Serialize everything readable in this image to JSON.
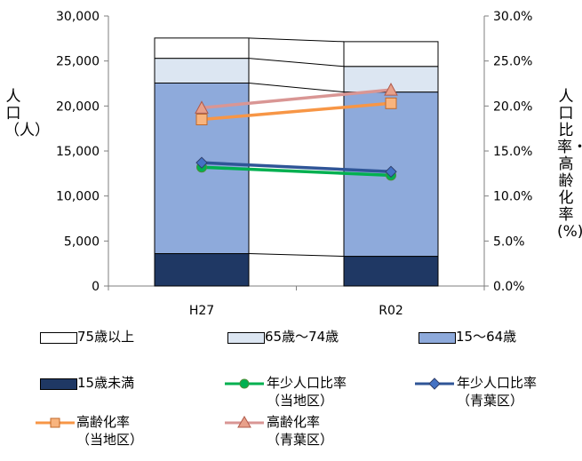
{
  "chart_data": {
    "type": "bar",
    "categories": [
      "H27",
      "R02"
    ],
    "ylabel_left": "人口（人）",
    "ylabel_right": "人口比率・高齢化率(%)",
    "ylim_left": [
      0,
      30000
    ],
    "ylim_right": [
      0,
      30
    ],
    "left_ticks": [
      "0",
      "5,000",
      "10,000",
      "15,000",
      "20,000",
      "25,000",
      "30,000"
    ],
    "right_ticks": [
      "0.0%",
      "5.0%",
      "10.0%",
      "15.0%",
      "20.0%",
      "25.0%",
      "30.0%"
    ],
    "stacked_series": [
      {
        "name": "15歳未満",
        "color": "#1f3864",
        "values": [
          3600,
          3300
        ]
      },
      {
        "name": "15～64歳",
        "color": "#8eaadb",
        "values": [
          18950,
          18250
        ]
      },
      {
        "name": "65歳～74歳",
        "color": "#dce6f2",
        "values": [
          2750,
          2850
        ]
      },
      {
        "name": "75歳以上",
        "color": "#ffffff",
        "values": [
          2250,
          2750
        ]
      }
    ],
    "line_series": [
      {
        "name": "年少人口比率（当地区）",
        "color": "#00b050",
        "marker": "circle",
        "values": [
          13.2,
          12.3
        ]
      },
      {
        "name": "年少人口比率（青葉区）",
        "color": "#2f5597",
        "marker": "diamond",
        "values": [
          13.7,
          12.7
        ]
      },
      {
        "name": "高齢化率（当地区）",
        "color": "#f79646",
        "marker": "square",
        "values": [
          18.5,
          20.3
        ]
      },
      {
        "name": "高齢化率（青葉区）",
        "color": "#d99694",
        "marker": "triangle",
        "values": [
          19.8,
          21.8
        ]
      }
    ],
    "legend": [
      {
        "line1": "75歳以上",
        "line2": ""
      },
      {
        "line1": "65歳～74歳",
        "line2": ""
      },
      {
        "line1": "15～64歳",
        "line2": ""
      },
      {
        "line1": "15歳未満",
        "line2": ""
      },
      {
        "line1": "年少人口比率",
        "line2": "（当地区）"
      },
      {
        "line1": "年少人口比率",
        "line2": "（青葉区）"
      },
      {
        "line1": "高齢化率",
        "line2": "（当地区）"
      },
      {
        "line1": "高齢化率",
        "line2": "（青葉区）"
      }
    ]
  }
}
